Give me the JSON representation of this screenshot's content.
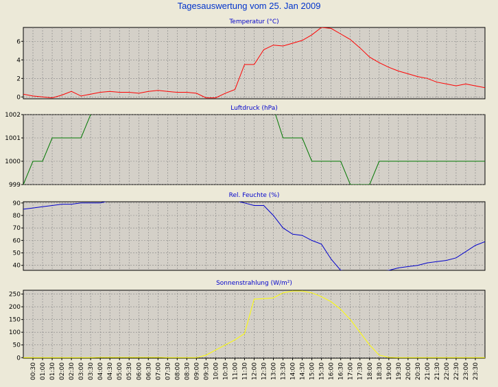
{
  "title": "Tagesauswertung vom 25. Jan 2009",
  "chart_data": [
    {
      "type": "line",
      "title": "Temperatur (°C)",
      "color": "#ff0000",
      "ylim": [
        -0.2,
        7.5
      ],
      "yticks": [
        0,
        2,
        4,
        6
      ],
      "grid": true,
      "x": [
        0,
        0.5,
        1,
        1.5,
        2,
        2.5,
        3,
        3.5,
        4,
        4.5,
        5,
        5.5,
        6,
        6.5,
        7,
        7.5,
        8,
        8.5,
        9,
        9.5,
        10,
        10.5,
        11,
        11.5,
        12,
        12.5,
        13,
        13.5,
        14,
        14.5,
        15,
        15.5,
        16,
        16.5,
        17,
        17.5,
        18,
        18.5,
        19,
        19.5,
        20,
        20.5,
        21,
        21.5,
        22,
        22.5,
        23,
        23.5,
        24
      ],
      "values": [
        0.3,
        0.1,
        0.0,
        -0.1,
        0.2,
        0.6,
        0.1,
        0.3,
        0.5,
        0.6,
        0.5,
        0.5,
        0.4,
        0.6,
        0.7,
        0.6,
        0.5,
        0.5,
        0.4,
        -0.1,
        -0.1,
        0.4,
        0.8,
        3.5,
        3.5,
        5.1,
        5.6,
        5.5,
        5.8,
        6.1,
        6.7,
        7.5,
        7.4,
        6.8,
        6.2,
        5.3,
        4.3,
        3.7,
        3.2,
        2.8,
        2.5,
        2.2,
        2.0,
        1.6,
        1.4,
        1.2,
        1.4,
        1.2,
        1.0
      ]
    },
    {
      "type": "line",
      "title": "Luftdruck (hPa)",
      "color": "#007700",
      "ylim": [
        999,
        1002
      ],
      "yticks": [
        999,
        1000,
        1001,
        1002
      ],
      "grid": true,
      "x": [
        0,
        0.5,
        1,
        1.5,
        2,
        2.5,
        3,
        3.5,
        4,
        4.5,
        5,
        5.5,
        6,
        6.5,
        7,
        7.5,
        8,
        8.5,
        9,
        9.5,
        10,
        10.5,
        11,
        11.5,
        12,
        12.5,
        13,
        13.5,
        14,
        14.5,
        15,
        15.5,
        16,
        16.5,
        17,
        17.5,
        18,
        18.5,
        19,
        19.5,
        20,
        20.5,
        21,
        21.5,
        22,
        22.5,
        23,
        23.5,
        24
      ],
      "values": [
        999,
        1000,
        1000,
        1001,
        1001,
        1001,
        1001,
        1002,
        1002.3,
        1002.3,
        1002.3,
        1002.3,
        1002.3,
        1002.3,
        1002.3,
        1002.3,
        1002.3,
        1002.3,
        1002.3,
        1002.3,
        1002.3,
        1002.3,
        1002.3,
        1002.3,
        1002.3,
        1002.3,
        1002.3,
        1001,
        1001,
        1001,
        1000,
        1000,
        1000,
        1000,
        999,
        999,
        999,
        1000,
        1000,
        1000,
        1000,
        1000,
        1000,
        1000,
        1000,
        1000,
        1000,
        1000,
        1000
      ]
    },
    {
      "type": "line",
      "title": "Rel. Feuchte (%)",
      "color": "#0000cc",
      "ylim": [
        36,
        91
      ],
      "yticks": [
        40,
        50,
        60,
        70,
        80,
        90
      ],
      "grid": true,
      "x": [
        0,
        0.5,
        1,
        1.5,
        2,
        2.5,
        3,
        3.5,
        4,
        4.5,
        5,
        5.5,
        6,
        6.5,
        7,
        7.5,
        8,
        8.5,
        9,
        9.5,
        10,
        10.5,
        11,
        11.5,
        12,
        12.5,
        13,
        13.5,
        14,
        14.5,
        15,
        15.5,
        16,
        16.5,
        17,
        17.5,
        18,
        18.5,
        19,
        19.5,
        20,
        20.5,
        21,
        21.5,
        22,
        22.5,
        23,
        23.5,
        24
      ],
      "values": [
        85,
        86,
        87,
        88,
        89,
        89,
        90,
        90,
        90,
        92,
        92,
        92,
        92,
        92,
        92,
        92,
        92,
        92,
        92,
        92,
        92,
        92,
        92,
        90,
        88,
        88,
        80,
        70,
        65,
        64,
        60,
        57,
        45,
        36,
        35,
        35,
        35,
        35,
        36,
        38,
        39,
        40,
        42,
        43,
        44,
        46,
        51,
        56,
        59
      ]
    },
    {
      "type": "line",
      "title": "Sonnenstrahlung (W/m²)",
      "color": "#ffff00",
      "ylim": [
        -2,
        265
      ],
      "yticks": [
        0,
        50,
        100,
        150,
        200,
        250
      ],
      "grid": true,
      "x": [
        0,
        0.5,
        1,
        1.5,
        2,
        2.5,
        3,
        3.5,
        4,
        4.5,
        5,
        5.5,
        6,
        6.5,
        7,
        7.5,
        8,
        8.5,
        9,
        9.5,
        10,
        10.5,
        11,
        11.5,
        12,
        12.5,
        13,
        13.5,
        14,
        14.5,
        15,
        15.5,
        16,
        16.5,
        17,
        17.5,
        18,
        18.5,
        19,
        19.5,
        20,
        20.5,
        21,
        21.5,
        22,
        22.5,
        23,
        23.5,
        24
      ],
      "values": [
        0,
        0,
        0,
        0,
        0,
        0,
        0,
        0,
        1,
        1,
        1,
        1,
        1,
        1,
        1,
        0,
        0,
        0,
        0,
        10,
        30,
        50,
        70,
        95,
        230,
        232,
        235,
        255,
        262,
        262,
        255,
        240,
        220,
        190,
        150,
        100,
        50,
        10,
        1,
        0,
        0,
        0,
        0,
        0,
        0,
        0,
        0,
        0,
        0
      ]
    }
  ],
  "x_tick_labels": [
    "00:30",
    "01:00",
    "01:30",
    "02:00",
    "02:30",
    "03:00",
    "03:30",
    "04:00",
    "04:30",
    "05:00",
    "05:30",
    "06:00",
    "06:30",
    "07:00",
    "07:30",
    "08:00",
    "08:30",
    "09:00",
    "09:30",
    "10:00",
    "10:30",
    "11:00",
    "11:30",
    "12:00",
    "12:30",
    "13:00",
    "13:30",
    "14:00",
    "14:30",
    "15:00",
    "15:30",
    "16:00",
    "16:30",
    "17:00",
    "17:30",
    "18:00",
    "18:30",
    "19:00",
    "19:30",
    "20:00",
    "20:30",
    "21:00",
    "21:30",
    "22:00",
    "22:30",
    "23:00",
    "23:30"
  ],
  "colors": {
    "background": "#ece9d8",
    "plot_background": "#d4d0c8",
    "grid": "#808080",
    "title": "#0000cc"
  }
}
